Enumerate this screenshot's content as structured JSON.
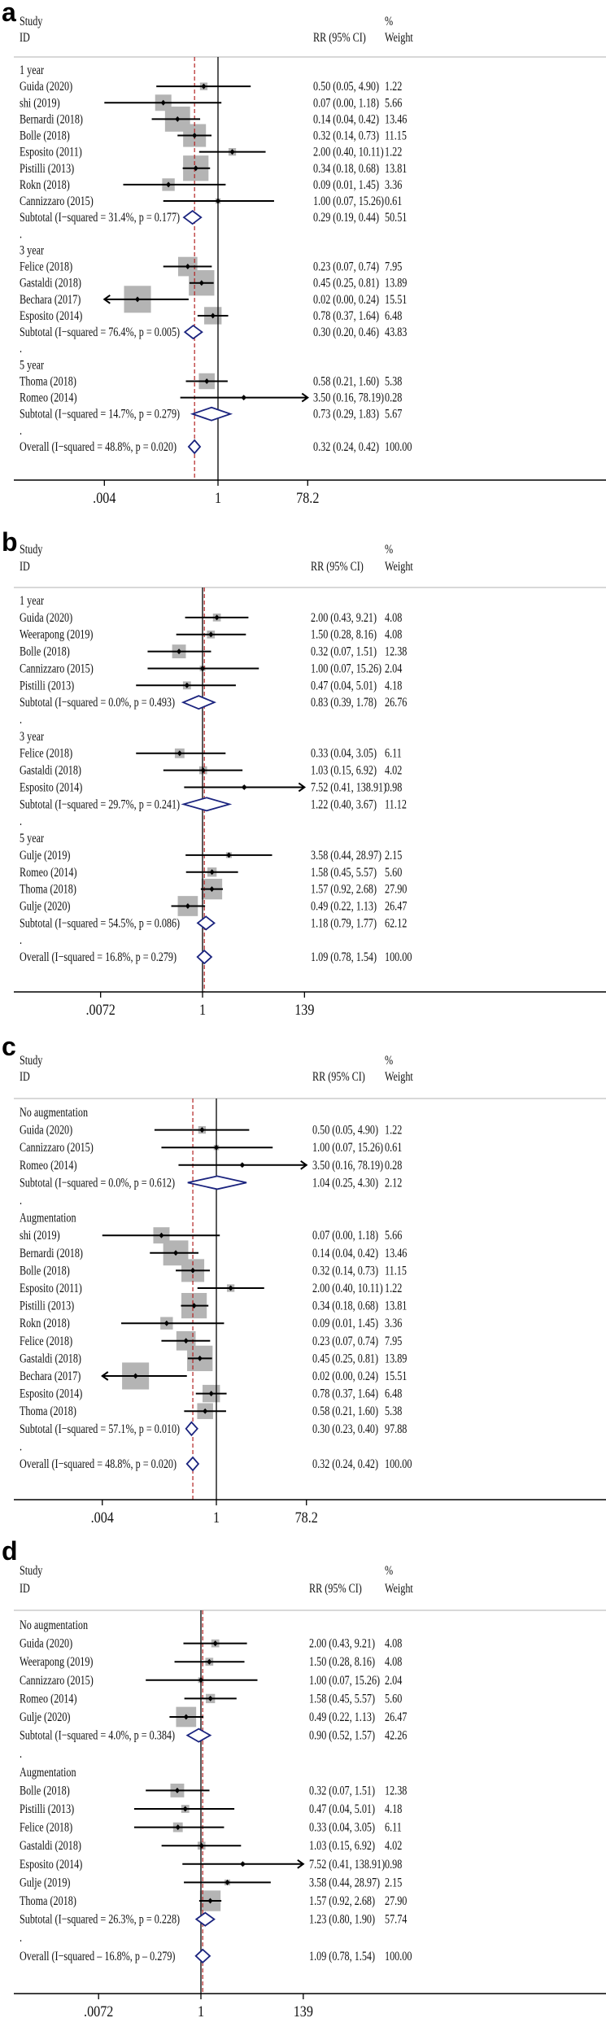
{
  "chart_data": [
    {
      "type": "forest",
      "panel_label": "a",
      "headers": {
        "study": "Study",
        "id": "ID",
        "rr": "RR (95% CI)",
        "pct": "%",
        "weight": "Weight"
      },
      "axis": {
        "scale": "log",
        "ticks": [
          {
            "value": 0.004,
            "label": ".004"
          },
          {
            "value": 1,
            "label": "1"
          },
          {
            "value": 78.2,
            "label": "78.2"
          }
        ]
      },
      "overall_rr": 0.32,
      "rows": [
        {
          "t": "g",
          "label": "1 year"
        },
        {
          "t": "s",
          "label": "Guida (2020)",
          "rr": 0.5,
          "lo": 0.05,
          "hi": 4.9,
          "ci": "0.50 (0.05, 4.90)",
          "w": "1.22"
        },
        {
          "t": "s",
          "label": "shi (2019)",
          "rr": 0.07,
          "lo": 0.0,
          "hi": 1.18,
          "ci": "0.07 (0.00, 1.18)",
          "w": "5.66"
        },
        {
          "t": "s",
          "label": "Bernardi  (2018)",
          "rr": 0.14,
          "lo": 0.04,
          "hi": 0.42,
          "ci": "0.14 (0.04, 0.42)",
          "w": "13.46"
        },
        {
          "t": "s",
          "label": "Bolle  (2018)",
          "rr": 0.32,
          "lo": 0.14,
          "hi": 0.73,
          "ci": "0.32 (0.14, 0.73)",
          "w": "11.15"
        },
        {
          "t": "s",
          "label": "Esposito (2011)",
          "rr": 2.0,
          "lo": 0.4,
          "hi": 10.11,
          "ci": "2.00 (0.40, 10.11)",
          "w": "1.22"
        },
        {
          "t": "s",
          "label": "Pistilli  (2013)",
          "rr": 0.34,
          "lo": 0.18,
          "hi": 0.68,
          "ci": "0.34 (0.18, 0.68)",
          "w": "13.81"
        },
        {
          "t": "s",
          "label": "Rokn  (2018)",
          "rr": 0.09,
          "lo": 0.01,
          "hi": 1.45,
          "ci": "0.09 (0.01, 1.45)",
          "w": "3.36"
        },
        {
          "t": "s",
          "label": "Cannizzaro  (2015)",
          "rr": 1.0,
          "lo": 0.07,
          "hi": 15.26,
          "ci": "1.00 (0.07, 15.26)",
          "w": "0.61"
        },
        {
          "t": "sub",
          "label": "Subtotal  (I−squared = 31.4%, p = 0.177)",
          "rr": 0.29,
          "lo": 0.19,
          "hi": 0.44,
          "ci": "0.29 (0.19, 0.44)",
          "w": "50.51"
        },
        {
          "t": "d",
          "label": "."
        },
        {
          "t": "g",
          "label": "3 year"
        },
        {
          "t": "s",
          "label": "Felice (2018)",
          "rr": 0.23,
          "lo": 0.07,
          "hi": 0.74,
          "ci": "0.23 (0.07, 0.74)",
          "w": "7.95"
        },
        {
          "t": "s",
          "label": "Gastaldi (2018)",
          "rr": 0.45,
          "lo": 0.25,
          "hi": 0.81,
          "ci": "0.45 (0.25, 0.81)",
          "w": "13.89"
        },
        {
          "t": "s",
          "label": "Bechara  (2017)",
          "rr": 0.02,
          "lo": 0.0,
          "hi": 0.24,
          "ci": "0.02 (0.00, 0.24)",
          "w": "15.51",
          "arrow": "left"
        },
        {
          "t": "s",
          "label": "Esposito (2014)",
          "rr": 0.78,
          "lo": 0.37,
          "hi": 1.64,
          "ci": "0.78 (0.37, 1.64)",
          "w": "6.48"
        },
        {
          "t": "sub",
          "label": "Subtotal  (I−squared = 76.4%, p = 0.005)",
          "rr": 0.3,
          "lo": 0.2,
          "hi": 0.46,
          "ci": "0.30 (0.20, 0.46)",
          "w": "43.83"
        },
        {
          "t": "d",
          "label": "."
        },
        {
          "t": "g",
          "label": "5 year"
        },
        {
          "t": "s",
          "label": "Thoma  (2018)",
          "rr": 0.58,
          "lo": 0.21,
          "hi": 1.6,
          "ci": "0.58 (0.21, 1.60)",
          "w": "5.38"
        },
        {
          "t": "s",
          "label": "Romeo  (2014)",
          "rr": 3.5,
          "lo": 0.16,
          "hi": 78.19,
          "ci": "3.50 (0.16, 78.19)",
          "w": "0.28",
          "arrow": "right"
        },
        {
          "t": "sub",
          "label": "Subtotal  (I−squared = 14.7%, p = 0.279)",
          "rr": 0.73,
          "lo": 0.29,
          "hi": 1.83,
          "ci": "0.73 (0.29, 1.83)",
          "w": "5.67"
        },
        {
          "t": "d",
          "label": "."
        },
        {
          "t": "sub",
          "label": "Overall  (I−squared = 48.8%, p = 0.020)",
          "rr": 0.32,
          "lo": 0.24,
          "hi": 0.42,
          "ci": "0.32 (0.24, 0.42)",
          "w": "100.00"
        }
      ]
    },
    {
      "type": "forest",
      "panel_label": "b",
      "headers": {
        "study": "Study",
        "id": "ID",
        "rr": "RR (95% CI)",
        "pct": "%",
        "weight": "Weight"
      },
      "axis": {
        "scale": "log",
        "ticks": [
          {
            "value": 0.0072,
            "label": ".0072"
          },
          {
            "value": 1,
            "label": "1"
          },
          {
            "value": 139,
            "label": "139"
          }
        ]
      },
      "overall_rr": 1.09,
      "rows": [
        {
          "t": "g",
          "label": "1 year"
        },
        {
          "t": "s",
          "label": "Guida (2020)",
          "rr": 2.0,
          "lo": 0.43,
          "hi": 9.21,
          "ci": "2.00 (0.43, 9.21)",
          "w": "4.08"
        },
        {
          "t": "s",
          "label": "Weerapong (2019)",
          "rr": 1.5,
          "lo": 0.28,
          "hi": 8.16,
          "ci": "1.50 (0.28, 8.16)",
          "w": "4.08"
        },
        {
          "t": "s",
          "label": "Bolle  (2018)",
          "rr": 0.32,
          "lo": 0.07,
          "hi": 1.51,
          "ci": "0.32 (0.07, 1.51)",
          "w": "12.38"
        },
        {
          "t": "s",
          "label": "Cannizzaro (2015)",
          "rr": 1.0,
          "lo": 0.07,
          "hi": 15.26,
          "ci": "1.00 (0.07, 15.26)",
          "w": "2.04"
        },
        {
          "t": "s",
          "label": "Pistilli  (2013)",
          "rr": 0.47,
          "lo": 0.04,
          "hi": 5.01,
          "ci": "0.47 (0.04, 5.01)",
          "w": "4.18"
        },
        {
          "t": "sub",
          "label": "Subtotal  (I−squared = 0.0%, p = 0.493)",
          "rr": 0.83,
          "lo": 0.39,
          "hi": 1.78,
          "ci": "0.83 (0.39, 1.78)",
          "w": "26.76"
        },
        {
          "t": "d",
          "label": "."
        },
        {
          "t": "g",
          "label": "3 year"
        },
        {
          "t": "s",
          "label": "Felice (2018)",
          "rr": 0.33,
          "lo": 0.04,
          "hi": 3.05,
          "ci": "0.33 (0.04, 3.05)",
          "w": "6.11"
        },
        {
          "t": "s",
          "label": "Gastaldi (2018)",
          "rr": 1.03,
          "lo": 0.15,
          "hi": 6.92,
          "ci": "1.03 (0.15, 6.92)",
          "w": "4.02"
        },
        {
          "t": "s",
          "label": "Esposito (2014)",
          "rr": 7.52,
          "lo": 0.41,
          "hi": 138.91,
          "ci": "7.52 (0.41, 138.91)",
          "w": "0.98",
          "arrow": "right"
        },
        {
          "t": "sub",
          "label": "Subtotal  (I−squared = 29.7%, p = 0.241)",
          "rr": 1.22,
          "lo": 0.4,
          "hi": 3.67,
          "ci": "1.22 (0.40, 3.67)",
          "w": "11.12"
        },
        {
          "t": "d",
          "label": "."
        },
        {
          "t": "g",
          "label": "5 year"
        },
        {
          "t": "s",
          "label": "Gulje (2019)",
          "rr": 3.58,
          "lo": 0.44,
          "hi": 28.97,
          "ci": "3.58 (0.44, 28.97)",
          "w": "2.15"
        },
        {
          "t": "s",
          "label": "Romeo  (2014)",
          "rr": 1.58,
          "lo": 0.45,
          "hi": 5.57,
          "ci": "1.58 (0.45, 5.57)",
          "w": "5.60"
        },
        {
          "t": "s",
          "label": "Thoma  (2018)",
          "rr": 1.57,
          "lo": 0.92,
          "hi": 2.68,
          "ci": "1.57 (0.92, 2.68)",
          "w": "27.90"
        },
        {
          "t": "s",
          "label": "Gulje (2020)",
          "rr": 0.49,
          "lo": 0.22,
          "hi": 1.13,
          "ci": "0.49 (0.22, 1.13)",
          "w": "26.47"
        },
        {
          "t": "sub",
          "label": "Subtotal  (I−squared = 54.5%, p = 0.086)",
          "rr": 1.18,
          "lo": 0.79,
          "hi": 1.77,
          "ci": "1.18 (0.79, 1.77)",
          "w": "62.12"
        },
        {
          "t": "d",
          "label": "."
        },
        {
          "t": "sub",
          "label": "Overall  (I−squared = 16.8%, p = 0.279)",
          "rr": 1.09,
          "lo": 0.78,
          "hi": 1.54,
          "ci": "1.09 (0.78, 1.54)",
          "w": "100.00"
        }
      ]
    },
    {
      "type": "forest",
      "panel_label": "c",
      "headers": {
        "study": "Study",
        "id": "ID",
        "rr": "RR (95% CI)",
        "pct": "%",
        "weight": "Weight"
      },
      "axis": {
        "scale": "log",
        "ticks": [
          {
            "value": 0.004,
            "label": ".004"
          },
          {
            "value": 1,
            "label": "1"
          },
          {
            "value": 78.2,
            "label": "78.2"
          }
        ]
      },
      "overall_rr": 0.32,
      "rows": [
        {
          "t": "g",
          "label": "No augmentation"
        },
        {
          "t": "s",
          "label": "Guida (2020)",
          "rr": 0.5,
          "lo": 0.05,
          "hi": 4.9,
          "ci": "0.50 (0.05, 4.90)",
          "w": "1.22"
        },
        {
          "t": "s",
          "label": "Cannizzaro  (2015)",
          "rr": 1.0,
          "lo": 0.07,
          "hi": 15.26,
          "ci": "1.00 (0.07, 15.26)",
          "w": "0.61"
        },
        {
          "t": "s",
          "label": "Romeo  (2014)",
          "rr": 3.5,
          "lo": 0.16,
          "hi": 78.19,
          "ci": "3.50 (0.16, 78.19)",
          "w": "0.28",
          "arrow": "right"
        },
        {
          "t": "sub",
          "label": "Subtotal  (I−squared = 0.0%, p = 0.612)",
          "rr": 1.04,
          "lo": 0.25,
          "hi": 4.3,
          "ci": "1.04 (0.25, 4.30)",
          "w": "2.12"
        },
        {
          "t": "d",
          "label": "."
        },
        {
          "t": "g",
          "label": "Augmentation"
        },
        {
          "t": "s",
          "label": "shi (2019)",
          "rr": 0.07,
          "lo": 0.0,
          "hi": 1.18,
          "ci": "0.07 (0.00, 1.18)",
          "w": "5.66"
        },
        {
          "t": "s",
          "label": "Bernardi  (2018)",
          "rr": 0.14,
          "lo": 0.04,
          "hi": 0.42,
          "ci": "0.14 (0.04, 0.42)",
          "w": "13.46"
        },
        {
          "t": "s",
          "label": "Bolle  (2018)",
          "rr": 0.32,
          "lo": 0.14,
          "hi": 0.73,
          "ci": "0.32 (0.14, 0.73)",
          "w": "11.15"
        },
        {
          "t": "s",
          "label": "Esposito (2011)",
          "rr": 2.0,
          "lo": 0.4,
          "hi": 10.11,
          "ci": "2.00 (0.40, 10.11)",
          "w": "1.22"
        },
        {
          "t": "s",
          "label": "Pistilli  (2013)",
          "rr": 0.34,
          "lo": 0.18,
          "hi": 0.68,
          "ci": "0.34 (0.18, 0.68)",
          "w": "13.81"
        },
        {
          "t": "s",
          "label": "Rokn  (2018)",
          "rr": 0.09,
          "lo": 0.01,
          "hi": 1.45,
          "ci": "0.09 (0.01, 1.45)",
          "w": "3.36"
        },
        {
          "t": "s",
          "label": "Felice (2018)",
          "rr": 0.23,
          "lo": 0.07,
          "hi": 0.74,
          "ci": "0.23 (0.07, 0.74)",
          "w": "7.95"
        },
        {
          "t": "s",
          "label": "Gastaldi (2018)",
          "rr": 0.45,
          "lo": 0.25,
          "hi": 0.81,
          "ci": "0.45 (0.25, 0.81)",
          "w": "13.89"
        },
        {
          "t": "s",
          "label": "Bechara  (2017)",
          "rr": 0.02,
          "lo": 0.0,
          "hi": 0.24,
          "ci": "0.02 (0.00, 0.24)",
          "w": "15.51",
          "arrow": "left"
        },
        {
          "t": "s",
          "label": "Esposito (2014)",
          "rr": 0.78,
          "lo": 0.37,
          "hi": 1.64,
          "ci": "0.78 (0.37, 1.64)",
          "w": "6.48"
        },
        {
          "t": "s",
          "label": "Thoma  (2018)",
          "rr": 0.58,
          "lo": 0.21,
          "hi": 1.6,
          "ci": "0.58 (0.21, 1.60)",
          "w": "5.38"
        },
        {
          "t": "sub",
          "label": "Subtotal  (I−squared = 57.1%, p = 0.010)",
          "rr": 0.3,
          "lo": 0.23,
          "hi": 0.4,
          "ci": "0.30 (0.23, 0.40)",
          "w": "97.88"
        },
        {
          "t": "d",
          "label": "."
        },
        {
          "t": "sub",
          "label": "Overall  (I−squared = 48.8%, p = 0.020)",
          "rr": 0.32,
          "lo": 0.24,
          "hi": 0.42,
          "ci": "0.32 (0.24, 0.42)",
          "w": "100.00"
        }
      ]
    },
    {
      "type": "forest",
      "panel_label": "d",
      "headers": {
        "study": "Study",
        "id": "ID",
        "rr": "RR (95% CI)",
        "pct": "%",
        "weight": "Weight"
      },
      "axis": {
        "scale": "log",
        "ticks": [
          {
            "value": 0.0072,
            "label": ".0072"
          },
          {
            "value": 1,
            "label": "1"
          },
          {
            "value": 139,
            "label": "139"
          }
        ]
      },
      "overall_rr": 1.09,
      "rows": [
        {
          "t": "g",
          "label": "No augmentation"
        },
        {
          "t": "s",
          "label": "Guida (2020)",
          "rr": 2.0,
          "lo": 0.43,
          "hi": 9.21,
          "ci": "2.00 (0.43, 9.21)",
          "w": "4.08"
        },
        {
          "t": "s",
          "label": "Weerapong (2019)",
          "rr": 1.5,
          "lo": 0.28,
          "hi": 8.16,
          "ci": "1.50 (0.28, 8.16)",
          "w": "4.08"
        },
        {
          "t": "s",
          "label": "Cannizzaro (2015)",
          "rr": 1.0,
          "lo": 0.07,
          "hi": 15.26,
          "ci": "1.00 (0.07, 15.26)",
          "w": "2.04"
        },
        {
          "t": "s",
          "label": "Romeo  (2014)",
          "rr": 1.58,
          "lo": 0.45,
          "hi": 5.57,
          "ci": "1.58 (0.45, 5.57)",
          "w": "5.60"
        },
        {
          "t": "s",
          "label": "Gulje (2020)",
          "rr": 0.49,
          "lo": 0.22,
          "hi": 1.13,
          "ci": "0.49 (0.22, 1.13)",
          "w": "26.47"
        },
        {
          "t": "sub",
          "label": "Subtotal  (I−squared = 4.0%, p = 0.384)",
          "rr": 0.9,
          "lo": 0.52,
          "hi": 1.57,
          "ci": "0.90 (0.52, 1.57)",
          "w": "42.26"
        },
        {
          "t": "d",
          "label": "."
        },
        {
          "t": "g",
          "label": "Augmentation"
        },
        {
          "t": "s",
          "label": "Bolle  (2018)",
          "rr": 0.32,
          "lo": 0.07,
          "hi": 1.51,
          "ci": "0.32 (0.07, 1.51)",
          "w": "12.38"
        },
        {
          "t": "s",
          "label": "Pistilli  (2013)",
          "rr": 0.47,
          "lo": 0.04,
          "hi": 5.01,
          "ci": "0.47 (0.04, 5.01)",
          "w": "4.18"
        },
        {
          "t": "s",
          "label": "Felice (2018)",
          "rr": 0.33,
          "lo": 0.04,
          "hi": 3.05,
          "ci": "0.33 (0.04, 3.05)",
          "w": "6.11"
        },
        {
          "t": "s",
          "label": "Gastaldi (2018)",
          "rr": 1.03,
          "lo": 0.15,
          "hi": 6.92,
          "ci": "1.03 (0.15, 6.92)",
          "w": "4.02"
        },
        {
          "t": "s",
          "label": "Esposito (2014)",
          "rr": 7.52,
          "lo": 0.41,
          "hi": 138.91,
          "ci": "7.52 (0.41, 138.91)",
          "w": "0.98",
          "arrow": "right"
        },
        {
          "t": "s",
          "label": "Gulje (2019)",
          "rr": 3.58,
          "lo": 0.44,
          "hi": 28.97,
          "ci": "3.58 (0.44, 28.97)",
          "w": "2.15"
        },
        {
          "t": "s",
          "label": "Thoma  (2018)",
          "rr": 1.57,
          "lo": 0.92,
          "hi": 2.68,
          "ci": "1.57 (0.92, 2.68)",
          "w": "27.90"
        },
        {
          "t": "sub",
          "label": "Subtotal  (I−squared = 26.3%, p = 0.228)",
          "rr": 1.23,
          "lo": 0.8,
          "hi": 1.9,
          "ci": "1.23 (0.80, 1.90)",
          "w": "57.74"
        },
        {
          "t": "d",
          "label": "."
        },
        {
          "t": "sub",
          "label": "Overall  (I−squared – 16.8%, p – 0.279)",
          "rr": 1.09,
          "lo": 0.78,
          "hi": 1.54,
          "ci": "1.09 (0.78, 1.54)",
          "w": "100.00"
        }
      ]
    }
  ],
  "colors": {
    "box": "#b4b4b4",
    "diamond": "#1a237e",
    "overall_line": "#b22222",
    "line": "#000000",
    "rule": "#cccccc"
  }
}
